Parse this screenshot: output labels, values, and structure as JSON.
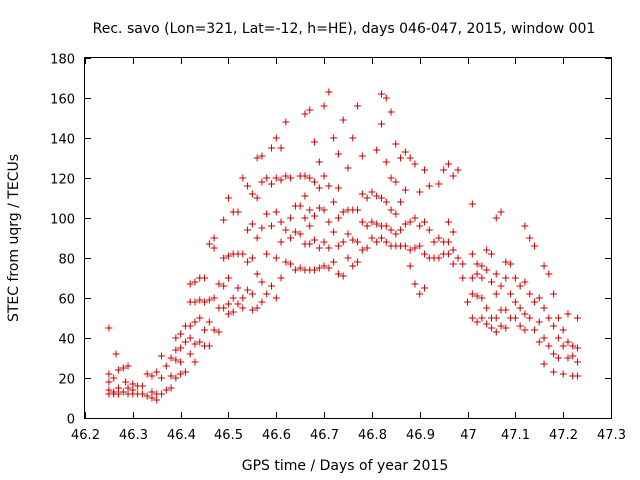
{
  "chart_data": {
    "type": "scatter",
    "title": "Rec. savo (Lon=321, Lat=-12, h=HE), days 046-047, 2015, window 001",
    "xlabel": "GPS time / Days of year 2015",
    "ylabel": "STEC from uqrg / TECUs",
    "xlim": [
      46.2,
      47.3
    ],
    "ylim": [
      0,
      180
    ],
    "xticks": [
      46.2,
      46.3,
      46.4,
      46.5,
      46.6,
      46.7,
      46.8,
      46.9,
      47,
      47.1,
      47.2,
      47.3
    ],
    "xtick_labels": [
      "46.2",
      "46.3",
      "46.4",
      "46.5",
      "46.6",
      "46.7",
      "46.8",
      "46.9",
      "47",
      "47.1",
      "47.2",
      "47.3"
    ],
    "yticks": [
      0,
      20,
      40,
      60,
      80,
      100,
      120,
      140,
      160,
      180
    ],
    "ytick_labels": [
      "0",
      "20",
      "40",
      "60",
      "80",
      "100",
      "120",
      "140",
      "160",
      "180"
    ],
    "grid": false,
    "marker": "+",
    "marker_color": "#cc0000",
    "points": [
      [
        46.25,
        45
      ],
      [
        46.25,
        22
      ],
      [
        46.25,
        18
      ],
      [
        46.25,
        14
      ],
      [
        46.25,
        12
      ],
      [
        46.26,
        20
      ],
      [
        46.26,
        13
      ],
      [
        46.26,
        12
      ],
      [
        46.265,
        32
      ],
      [
        46.27,
        24
      ],
      [
        46.27,
        15
      ],
      [
        46.27,
        12
      ],
      [
        46.28,
        25
      ],
      [
        46.28,
        13
      ],
      [
        46.285,
        18
      ],
      [
        46.29,
        26
      ],
      [
        46.29,
        15
      ],
      [
        46.29,
        12
      ],
      [
        46.3,
        17
      ],
      [
        46.3,
        14
      ],
      [
        46.3,
        12
      ],
      [
        46.31,
        16
      ],
      [
        46.31,
        12
      ],
      [
        46.32,
        16
      ],
      [
        46.32,
        12
      ],
      [
        46.33,
        22
      ],
      [
        46.33,
        11
      ],
      [
        46.34,
        21
      ],
      [
        46.34,
        13
      ],
      [
        46.34,
        10
      ],
      [
        46.35,
        23
      ],
      [
        46.35,
        12
      ],
      [
        46.35,
        9
      ],
      [
        46.36,
        31
      ],
      [
        46.36,
        20
      ],
      [
        46.36,
        12
      ],
      [
        46.37,
        26
      ],
      [
        46.37,
        14
      ],
      [
        46.38,
        30
      ],
      [
        46.38,
        21
      ],
      [
        46.38,
        15
      ],
      [
        46.39,
        40
      ],
      [
        46.39,
        34
      ],
      [
        46.39,
        29
      ],
      [
        46.39,
        20
      ],
      [
        46.4,
        42
      ],
      [
        46.4,
        35
      ],
      [
        46.4,
        28
      ],
      [
        46.4,
        22
      ],
      [
        46.41,
        46
      ],
      [
        46.41,
        38
      ],
      [
        46.41,
        23
      ],
      [
        46.42,
        67
      ],
      [
        46.42,
        58
      ],
      [
        46.42,
        46
      ],
      [
        46.42,
        40
      ],
      [
        46.42,
        32
      ],
      [
        46.43,
        68
      ],
      [
        46.43,
        58
      ],
      [
        46.43,
        48
      ],
      [
        46.43,
        37
      ],
      [
        46.43,
        28
      ],
      [
        46.44,
        70
      ],
      [
        46.44,
        59
      ],
      [
        46.44,
        50
      ],
      [
        46.44,
        38
      ],
      [
        46.45,
        70
      ],
      [
        46.45,
        58
      ],
      [
        46.45,
        44
      ],
      [
        46.45,
        36
      ],
      [
        46.46,
        87
      ],
      [
        46.46,
        59
      ],
      [
        46.46,
        48
      ],
      [
        46.46,
        36
      ],
      [
        46.47,
        90
      ],
      [
        46.47,
        85
      ],
      [
        46.47,
        60
      ],
      [
        46.47,
        44
      ],
      [
        46.48,
        67
      ],
      [
        46.48,
        55
      ],
      [
        46.48,
        43
      ],
      [
        46.49,
        99
      ],
      [
        46.49,
        80
      ],
      [
        46.49,
        66
      ],
      [
        46.49,
        55
      ],
      [
        46.5,
        110
      ],
      [
        46.5,
        81
      ],
      [
        46.5,
        70
      ],
      [
        46.5,
        57
      ],
      [
        46.5,
        52
      ],
      [
        46.51,
        103
      ],
      [
        46.51,
        82
      ],
      [
        46.51,
        60
      ],
      [
        46.51,
        53
      ],
      [
        46.52,
        103
      ],
      [
        46.52,
        82
      ],
      [
        46.52,
        65
      ],
      [
        46.52,
        57
      ],
      [
        46.53,
        120
      ],
      [
        46.53,
        82
      ],
      [
        46.53,
        60
      ],
      [
        46.53,
        55
      ],
      [
        46.54,
        116
      ],
      [
        46.54,
        94
      ],
      [
        46.54,
        78
      ],
      [
        46.54,
        64
      ],
      [
        46.55,
        112
      ],
      [
        46.55,
        97
      ],
      [
        46.55,
        80
      ],
      [
        46.55,
        62
      ],
      [
        46.55,
        54
      ],
      [
        46.56,
        130
      ],
      [
        46.56,
        110
      ],
      [
        46.56,
        90
      ],
      [
        46.56,
        72
      ],
      [
        46.56,
        55
      ],
      [
        46.57,
        131
      ],
      [
        46.57,
        118
      ],
      [
        46.57,
        95
      ],
      [
        46.57,
        68
      ],
      [
        46.57,
        58
      ],
      [
        46.58,
        120
      ],
      [
        46.58,
        102
      ],
      [
        46.58,
        82
      ],
      [
        46.58,
        62
      ],
      [
        46.59,
        135
      ],
      [
        46.59,
        117
      ],
      [
        46.59,
        96
      ],
      [
        46.59,
        66
      ],
      [
        46.6,
        140
      ],
      [
        46.6,
        120
      ],
      [
        46.6,
        103
      ],
      [
        46.6,
        80
      ],
      [
        46.6,
        60
      ],
      [
        46.61,
        135
      ],
      [
        46.61,
        119
      ],
      [
        46.61,
        98
      ],
      [
        46.61,
        88
      ],
      [
        46.61,
        70
      ],
      [
        46.62,
        148
      ],
      [
        46.62,
        121
      ],
      [
        46.62,
        94
      ],
      [
        46.62,
        78
      ],
      [
        46.63,
        120
      ],
      [
        46.63,
        100
      ],
      [
        46.63,
        90
      ],
      [
        46.63,
        77
      ],
      [
        46.64,
        106
      ],
      [
        46.64,
        93
      ],
      [
        46.64,
        74
      ],
      [
        46.65,
        121
      ],
      [
        46.65,
        106
      ],
      [
        46.65,
        92
      ],
      [
        46.65,
        75
      ],
      [
        46.66,
        152
      ],
      [
        46.66,
        121
      ],
      [
        46.66,
        111
      ],
      [
        46.66,
        100
      ],
      [
        46.66,
        87
      ],
      [
        46.66,
        74
      ],
      [
        46.67,
        154
      ],
      [
        46.67,
        120
      ],
      [
        46.67,
        104
      ],
      [
        46.67,
        96
      ],
      [
        46.67,
        87
      ],
      [
        46.67,
        74
      ],
      [
        46.68,
        138
      ],
      [
        46.68,
        118
      ],
      [
        46.68,
        101
      ],
      [
        46.68,
        89
      ],
      [
        46.68,
        74
      ],
      [
        46.69,
        128
      ],
      [
        46.69,
        115
      ],
      [
        46.69,
        105
      ],
      [
        46.69,
        85
      ],
      [
        46.69,
        75
      ],
      [
        46.7,
        156
      ],
      [
        46.7,
        121
      ],
      [
        46.7,
        104
      ],
      [
        46.7,
        88
      ],
      [
        46.7,
        76
      ],
      [
        46.71,
        163
      ],
      [
        46.71,
        116
      ],
      [
        46.71,
        98
      ],
      [
        46.71,
        85
      ],
      [
        46.71,
        75
      ],
      [
        46.72,
        140
      ],
      [
        46.72,
        108
      ],
      [
        46.72,
        93
      ],
      [
        46.72,
        78
      ],
      [
        46.73,
        132
      ],
      [
        46.73,
        115
      ],
      [
        46.73,
        100
      ],
      [
        46.73,
        86
      ],
      [
        46.73,
        72
      ],
      [
        46.74,
        149
      ],
      [
        46.74,
        103
      ],
      [
        46.74,
        88
      ],
      [
        46.74,
        71
      ],
      [
        46.75,
        125
      ],
      [
        46.75,
        104
      ],
      [
        46.75,
        92
      ],
      [
        46.75,
        80
      ],
      [
        46.76,
        140
      ],
      [
        46.76,
        104
      ],
      [
        46.76,
        89
      ],
      [
        46.76,
        76
      ],
      [
        46.77,
        156
      ],
      [
        46.77,
        104
      ],
      [
        46.77,
        88
      ],
      [
        46.77,
        78
      ],
      [
        46.78,
        131
      ],
      [
        46.78,
        112
      ],
      [
        46.78,
        98
      ],
      [
        46.78,
        84
      ],
      [
        46.79,
        110
      ],
      [
        46.79,
        96
      ],
      [
        46.79,
        85
      ],
      [
        46.8,
        113
      ],
      [
        46.8,
        98
      ],
      [
        46.8,
        90
      ],
      [
        46.81,
        134
      ],
      [
        46.81,
        111
      ],
      [
        46.81,
        97
      ],
      [
        46.81,
        88
      ],
      [
        46.82,
        162
      ],
      [
        46.82,
        147
      ],
      [
        46.82,
        110
      ],
      [
        46.82,
        96
      ],
      [
        46.82,
        90
      ],
      [
        46.83,
        160
      ],
      [
        46.83,
        128
      ],
      [
        46.83,
        108
      ],
      [
        46.83,
        96
      ],
      [
        46.83,
        88
      ],
      [
        46.84,
        153
      ],
      [
        46.84,
        120
      ],
      [
        46.84,
        104
      ],
      [
        46.84,
        94
      ],
      [
        46.84,
        86
      ],
      [
        46.85,
        137
      ],
      [
        46.85,
        118
      ],
      [
        46.85,
        102
      ],
      [
        46.85,
        92
      ],
      [
        46.85,
        86
      ],
      [
        46.86,
        130
      ],
      [
        46.86,
        108
      ],
      [
        46.86,
        94
      ],
      [
        46.86,
        86
      ],
      [
        46.87,
        133
      ],
      [
        46.87,
        114
      ],
      [
        46.87,
        97
      ],
      [
        46.87,
        86
      ],
      [
        46.88,
        130
      ],
      [
        46.88,
        98
      ],
      [
        46.88,
        84
      ],
      [
        46.88,
        76
      ],
      [
        46.89,
        127
      ],
      [
        46.89,
        100
      ],
      [
        46.89,
        85
      ],
      [
        46.89,
        67
      ],
      [
        46.9,
        113
      ],
      [
        46.9,
        96
      ],
      [
        46.9,
        86
      ],
      [
        46.9,
        62
      ],
      [
        46.91,
        124
      ],
      [
        46.91,
        98
      ],
      [
        46.91,
        82
      ],
      [
        46.91,
        65
      ],
      [
        46.92,
        116
      ],
      [
        46.92,
        94
      ],
      [
        46.92,
        80
      ],
      [
        46.93,
        88
      ],
      [
        46.93,
        80
      ],
      [
        46.94,
        117
      ],
      [
        46.94,
        90
      ],
      [
        46.94,
        80
      ],
      [
        46.95,
        124
      ],
      [
        46.95,
        88
      ],
      [
        46.95,
        82
      ],
      [
        46.96,
        127
      ],
      [
        46.96,
        98
      ],
      [
        46.96,
        88
      ],
      [
        46.96,
        82
      ],
      [
        46.97,
        121
      ],
      [
        46.97,
        93
      ],
      [
        46.97,
        84
      ],
      [
        46.97,
        77
      ],
      [
        46.98,
        124
      ],
      [
        46.98,
        80
      ],
      [
        46.99,
        77
      ],
      [
        46.99,
        70
      ],
      [
        47.0,
        58
      ],
      [
        47.01,
        107
      ],
      [
        47.01,
        82
      ],
      [
        47.01,
        70
      ],
      [
        47.01,
        62
      ],
      [
        47.01,
        50
      ],
      [
        47.02,
        77
      ],
      [
        47.02,
        72
      ],
      [
        47.02,
        61
      ],
      [
        47.02,
        48
      ],
      [
        47.03,
        76
      ],
      [
        47.03,
        70
      ],
      [
        47.03,
        60
      ],
      [
        47.03,
        50
      ],
      [
        47.04,
        84
      ],
      [
        47.04,
        74
      ],
      [
        47.04,
        55
      ],
      [
        47.04,
        47
      ],
      [
        47.05,
        82
      ],
      [
        47.05,
        68
      ],
      [
        47.05,
        50
      ],
      [
        47.05,
        45
      ],
      [
        47.06,
        100
      ],
      [
        47.06,
        72
      ],
      [
        47.06,
        62
      ],
      [
        47.06,
        50
      ],
      [
        47.06,
        43
      ],
      [
        47.07,
        103
      ],
      [
        47.07,
        66
      ],
      [
        47.07,
        54
      ],
      [
        47.07,
        46
      ],
      [
        47.08,
        78
      ],
      [
        47.08,
        70
      ],
      [
        47.08,
        54
      ],
      [
        47.08,
        45
      ],
      [
        47.09,
        77
      ],
      [
        47.09,
        62
      ],
      [
        47.09,
        50
      ],
      [
        47.1,
        70
      ],
      [
        47.1,
        58
      ],
      [
        47.1,
        50
      ],
      [
        47.11,
        66
      ],
      [
        47.11,
        55
      ],
      [
        47.11,
        46
      ],
      [
        47.12,
        96
      ],
      [
        47.12,
        68
      ],
      [
        47.12,
        52
      ],
      [
        47.12,
        44
      ],
      [
        47.13,
        90
      ],
      [
        47.13,
        62
      ],
      [
        47.13,
        50
      ],
      [
        47.14,
        86
      ],
      [
        47.14,
        58
      ],
      [
        47.14,
        44
      ],
      [
        47.15,
        60
      ],
      [
        47.15,
        48
      ],
      [
        47.15,
        38
      ],
      [
        47.16,
        76
      ],
      [
        47.16,
        55
      ],
      [
        47.16,
        40
      ],
      [
        47.16,
        27
      ],
      [
        47.17,
        72
      ],
      [
        47.17,
        50
      ],
      [
        47.17,
        36
      ],
      [
        47.18,
        62
      ],
      [
        47.18,
        46
      ],
      [
        47.18,
        32
      ],
      [
        47.18,
        23
      ],
      [
        47.19,
        50
      ],
      [
        47.19,
        40
      ],
      [
        47.19,
        30
      ],
      [
        47.2,
        44
      ],
      [
        47.2,
        36
      ],
      [
        47.2,
        22
      ],
      [
        47.21,
        52
      ],
      [
        47.21,
        38
      ],
      [
        47.21,
        30
      ],
      [
        47.22,
        36
      ],
      [
        47.22,
        31
      ],
      [
        47.22,
        21
      ],
      [
        47.23,
        50
      ],
      [
        47.23,
        35
      ],
      [
        47.23,
        28
      ],
      [
        47.23,
        21
      ]
    ]
  }
}
